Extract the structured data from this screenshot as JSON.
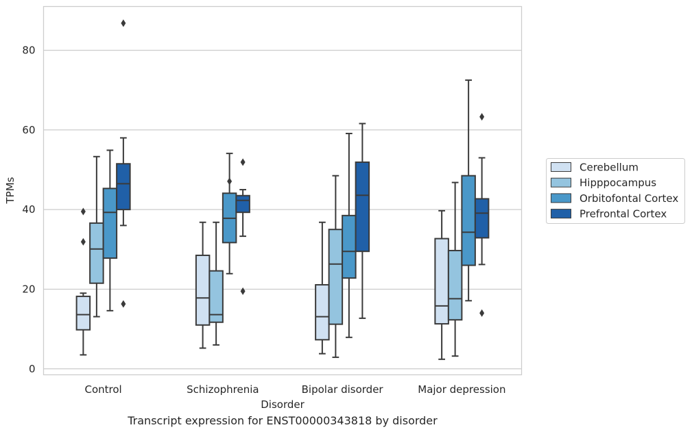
{
  "caption": "Transcript expression for ENST00000343818 by disorder",
  "chart_data": {
    "type": "boxplot",
    "title": "",
    "xlabel": "Disorder",
    "ylabel": "TPMs",
    "ylim": [
      -1.5,
      91
    ],
    "yticks": [
      0,
      20,
      40,
      60,
      80
    ],
    "grid": "horizontal",
    "legend_position": "right",
    "categories": [
      "Control",
      "Schizophrenia",
      "Bipolar disorder",
      "Major depression"
    ],
    "series": [
      {
        "name": "Cerebellum",
        "color": "#d0e1f2",
        "boxes": [
          {
            "whislo": 3.5,
            "q1": 9.8,
            "med": 13.6,
            "q3": 18.2,
            "whishi": 19.0,
            "fliers": [
              31.9,
              39.5
            ]
          },
          {
            "whislo": 5.2,
            "q1": 11.0,
            "med": 17.8,
            "q3": 28.5,
            "whishi": 36.8,
            "fliers": []
          },
          {
            "whislo": 3.8,
            "q1": 7.3,
            "med": 13.1,
            "q3": 21.1,
            "whishi": 36.8,
            "fliers": []
          },
          {
            "whislo": 2.4,
            "q1": 11.3,
            "med": 15.8,
            "q3": 32.7,
            "whishi": 39.7,
            "fliers": []
          }
        ]
      },
      {
        "name": "Hipppocampus",
        "color": "#94c4df",
        "boxes": [
          {
            "whislo": 13.1,
            "q1": 21.5,
            "med": 30.1,
            "q3": 36.6,
            "whishi": 53.3,
            "fliers": []
          },
          {
            "whislo": 6.0,
            "q1": 11.7,
            "med": 13.6,
            "q3": 24.6,
            "whishi": 36.8,
            "fliers": []
          },
          {
            "whislo": 2.9,
            "q1": 11.2,
            "med": 26.3,
            "q3": 35.0,
            "whishi": 48.5,
            "fliers": []
          },
          {
            "whislo": 3.2,
            "q1": 12.3,
            "med": 17.6,
            "q3": 29.7,
            "whishi": 46.8,
            "fliers": []
          }
        ]
      },
      {
        "name": "Orbitofontal Cortex",
        "color": "#4a98c9",
        "boxes": [
          {
            "whislo": 14.6,
            "q1": 27.8,
            "med": 39.3,
            "q3": 45.3,
            "whishi": 54.9,
            "fliers": []
          },
          {
            "whislo": 23.9,
            "q1": 31.7,
            "med": 37.8,
            "q3": 44.1,
            "whishi": 54.1,
            "fliers": [
              47.1
            ]
          },
          {
            "whislo": 7.9,
            "q1": 22.8,
            "med": 29.5,
            "q3": 38.5,
            "whishi": 59.1,
            "fliers": []
          },
          {
            "whislo": 17.1,
            "q1": 26.0,
            "med": 34.3,
            "q3": 48.5,
            "whishi": 72.5,
            "fliers": []
          }
        ]
      },
      {
        "name": "Prefrontal Cortex",
        "color": "#2060a8",
        "boxes": [
          {
            "whislo": 36.0,
            "q1": 40.0,
            "med": 46.5,
            "q3": 51.5,
            "whishi": 58.0,
            "fliers": [
              16.3,
              86.8
            ]
          },
          {
            "whislo": 33.3,
            "q1": 39.3,
            "med": 42.3,
            "q3": 43.5,
            "whishi": 45.0,
            "fliers": [
              19.5,
              51.9
            ]
          },
          {
            "whislo": 12.7,
            "q1": 29.5,
            "med": 43.6,
            "q3": 51.9,
            "whishi": 61.6,
            "fliers": []
          },
          {
            "whislo": 26.2,
            "q1": 32.9,
            "med": 39.1,
            "q3": 42.7,
            "whishi": 53.0,
            "fliers": [
              14.0,
              63.3
            ]
          }
        ]
      }
    ]
  }
}
